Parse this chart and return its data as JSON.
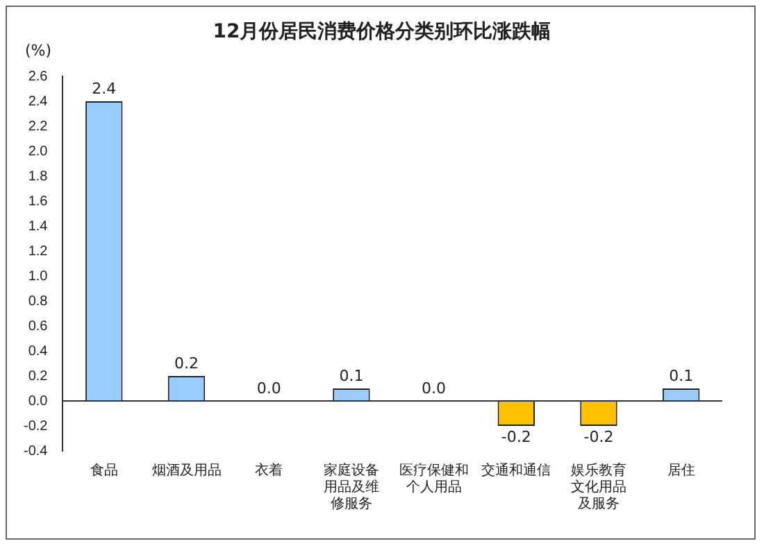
{
  "chart_data": {
    "type": "bar",
    "title": "12月份居民消费价格分类别环比涨跌幅",
    "ylabel": "(%)",
    "categories": [
      "食品",
      "烟酒及用品",
      "衣着",
      "家庭设备用品及维修服务",
      "医疗保健和个人用品",
      "交通和通信",
      "娱乐教育文化用品及服务",
      "居住"
    ],
    "values": [
      2.4,
      0.2,
      0.0,
      0.1,
      0.0,
      -0.2,
      -0.2,
      0.1
    ],
    "value_labels": [
      "2.4",
      "0.2",
      "0.0",
      "0.1",
      "0.0",
      "-0.2",
      "-0.2",
      "0.1"
    ],
    "colors": [
      "#99ccff",
      "#99ccff",
      "#99ccff",
      "#99ccff",
      "#99ccff",
      "#ffc000",
      "#ffc000",
      "#99ccff"
    ],
    "ylim": [
      -0.4,
      2.6
    ],
    "yticks": [
      {
        "value": -0.4,
        "label": "-0.4"
      },
      {
        "value": -0.2,
        "label": "-0.2"
      },
      {
        "value": 0,
        "label": "0.0"
      },
      {
        "value": 0.2,
        "label": "0.2"
      },
      {
        "value": 0.4,
        "label": "0.4"
      },
      {
        "value": 0.6,
        "label": "0.6"
      },
      {
        "value": 0.8,
        "label": "0.8"
      },
      {
        "value": 1,
        "label": "1.0"
      },
      {
        "value": 1.2,
        "label": "1.2"
      },
      {
        "value": 1.4,
        "label": "1.4"
      },
      {
        "value": 1.6,
        "label": "1.6"
      },
      {
        "value": 1.8,
        "label": "1.8"
      },
      {
        "value": 2,
        "label": "2.0"
      },
      {
        "value": 2.2,
        "label": "2.2"
      },
      {
        "value": 2.4,
        "label": "2.4"
      },
      {
        "value": 2.6,
        "label": "2.6"
      }
    ],
    "legend": false
  }
}
